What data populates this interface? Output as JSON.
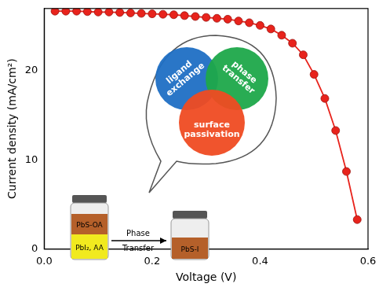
{
  "chart_data": {
    "type": "scatter",
    "x_label": "Voltage (V)",
    "y_label": "Current density (mA/cm²)",
    "x": [
      0.02,
      0.04,
      0.06,
      0.08,
      0.1,
      0.12,
      0.14,
      0.16,
      0.18,
      0.2,
      0.22,
      0.24,
      0.26,
      0.28,
      0.3,
      0.32,
      0.34,
      0.36,
      0.38,
      0.4,
      0.42,
      0.44,
      0.46,
      0.48,
      0.5,
      0.52,
      0.54,
      0.56,
      0.58
    ],
    "values": [
      26.7,
      26.7,
      26.7,
      26.65,
      26.6,
      26.6,
      26.55,
      26.5,
      26.45,
      26.4,
      26.35,
      26.3,
      26.2,
      26.1,
      26.0,
      25.9,
      25.8,
      25.6,
      25.4,
      25.1,
      24.7,
      24.0,
      23.1,
      21.8,
      19.6,
      16.9,
      13.3,
      8.7,
      3.3
    ],
    "color": "#e8231c",
    "marker": "circle",
    "line_style": "solid",
    "grid": false,
    "xlim": [
      0,
      0.6
    ],
    "xticks": [
      {
        "value": 0,
        "label": "0.0"
      },
      0.2,
      0.4,
      0.6
    ],
    "ylim": [
      0,
      27
    ],
    "yticks": [
      0,
      10,
      20
    ],
    "annotations": [
      "ligand exchange",
      "phase transfer",
      "surface passivation",
      "PbS-OA",
      "PbI₂, AA",
      "Phase Transfer",
      "PbS-I"
    ]
  }
}
